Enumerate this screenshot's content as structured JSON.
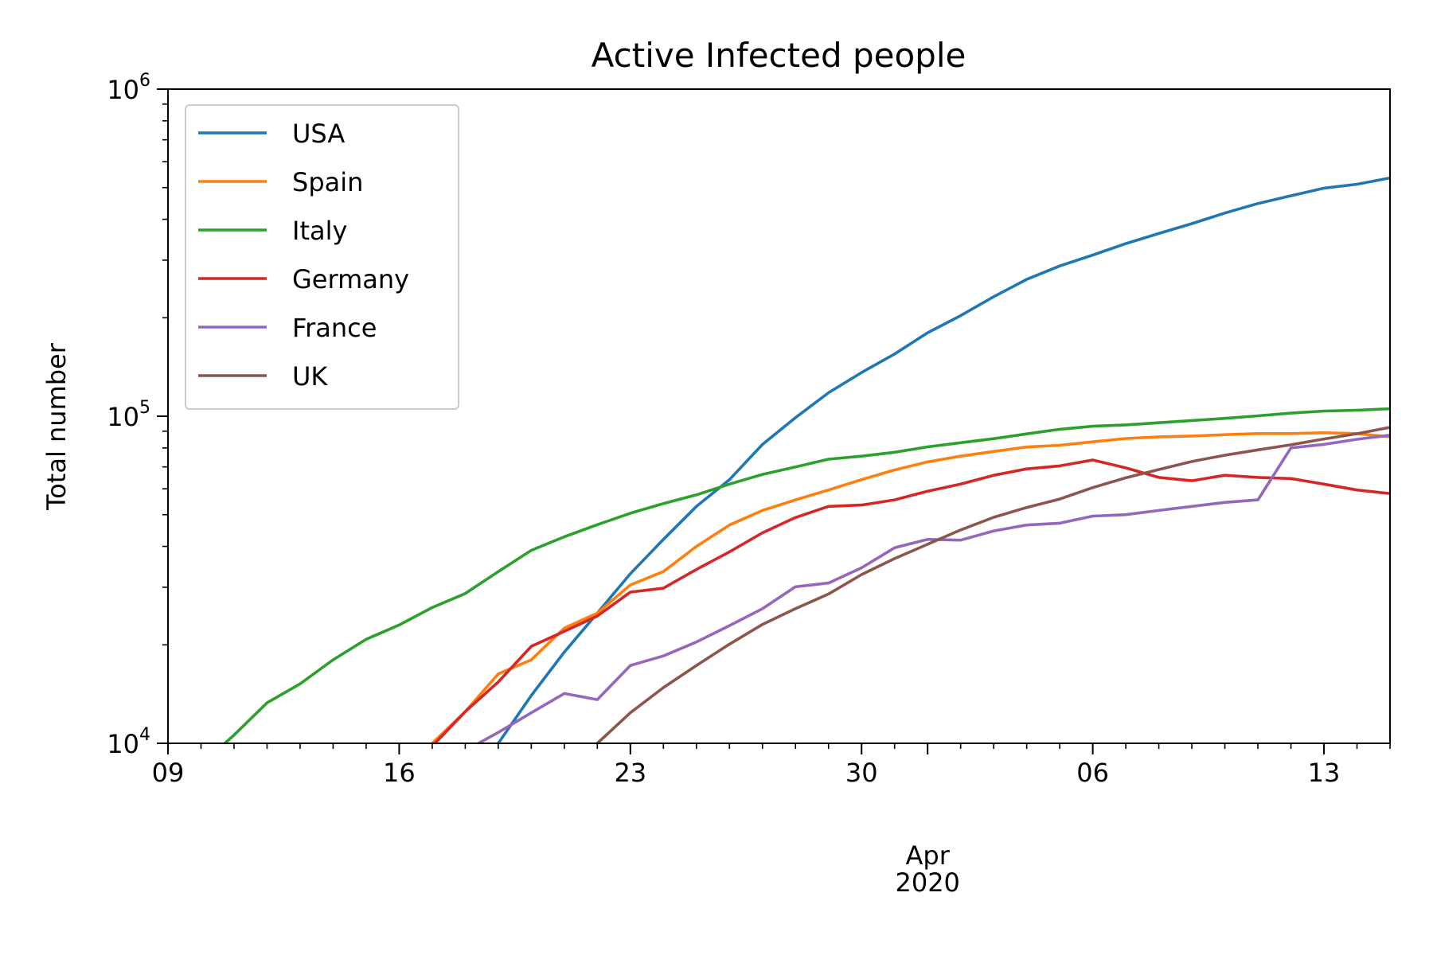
{
  "chart_data": {
    "type": "line",
    "title": "Active Infected people",
    "xlabel": "",
    "ylabel": "Total number",
    "yscale": "log",
    "ylim": [
      10000,
      1000000
    ],
    "xlim": [
      "2020-03-09",
      "2020-04-15"
    ],
    "x_tick_labels": [
      {
        "date": "2020-03-09",
        "label": "09"
      },
      {
        "date": "2020-03-16",
        "label": "16"
      },
      {
        "date": "2020-03-23",
        "label": "23"
      },
      {
        "date": "2020-03-30",
        "label": "30"
      },
      {
        "date": "2020-04-06",
        "label": "06"
      },
      {
        "date": "2020-04-13",
        "label": "13"
      }
    ],
    "x_month_label": {
      "date": "2020-04-01",
      "month": "Apr",
      "year": "2020"
    },
    "y_tick_labels": [
      {
        "value": 10000,
        "base": "10",
        "exp": "4"
      },
      {
        "value": 100000,
        "base": "10",
        "exp": "5"
      },
      {
        "value": 1000000,
        "base": "10",
        "exp": "6"
      }
    ],
    "grid": false,
    "legend_position": "top-left",
    "start_date": "2020-03-09",
    "series": [
      {
        "name": "USA",
        "color": "#1f77b4",
        "start_offset": 9,
        "values": [
          8800,
          10000,
          14000,
          19000,
          25000,
          33000,
          42000,
          53000,
          64000,
          82000,
          99000,
          118000,
          136000,
          155000,
          180000,
          203000,
          232000,
          262000,
          288000,
          311000,
          337000,
          362000,
          388000,
          418000,
          447000,
          472000,
          498000,
          512000,
          535000,
          560000
        ]
      },
      {
        "name": "Spain",
        "color": "#ff7f0e",
        "start_offset": 7,
        "values": [
          9000,
          10000,
          12500,
          16300,
          18000,
          22500,
          25000,
          30500,
          33500,
          40000,
          46500,
          51500,
          55500,
          59500,
          64000,
          68500,
          72500,
          75500,
          78000,
          80500,
          81500,
          83500,
          85500,
          86500,
          87000,
          87800,
          88500,
          88500,
          89000,
          88500,
          86500
        ]
      },
      {
        "name": "Italy",
        "color": "#2ca02c",
        "start_offset": 1,
        "values": [
          8600,
          10600,
          13300,
          15200,
          18000,
          20800,
          23000,
          26000,
          28700,
          33500,
          38900,
          42800,
          46600,
          50500,
          54100,
          57500,
          62000,
          66400,
          70000,
          73900,
          75500,
          77600,
          80600,
          83000,
          85400,
          88300,
          91200,
          93200,
          94100,
          95500,
          97000,
          98500,
          100300,
          102200,
          103700,
          104300,
          105400
        ]
      },
      {
        "name": "Germany",
        "color": "#d62728",
        "start_offset": 7,
        "values": [
          8500,
          9800,
          12500,
          15400,
          19800,
          22000,
          24500,
          29000,
          29800,
          34000,
          38500,
          44000,
          49000,
          53000,
          53500,
          55500,
          59000,
          62000,
          66000,
          69000,
          70500,
          73500,
          69500,
          65000,
          63500,
          66000,
          65000,
          64500,
          62000,
          59500,
          58000
        ]
      },
      {
        "name": "France",
        "color": "#9467bd",
        "start_offset": 9,
        "values": [
          9500,
          10800,
          12400,
          14200,
          13600,
          17300,
          18500,
          20400,
          22900,
          25800,
          30100,
          30900,
          34400,
          39600,
          42000,
          41800,
          44600,
          46500,
          47100,
          49500,
          50000,
          51500,
          53000,
          54500,
          55500,
          80000,
          82000,
          85000,
          87500,
          87000
        ]
      },
      {
        "name": "UK",
        "color": "#8c564b",
        "start_offset": 13,
        "values": [
          10000,
          12400,
          14800,
          17300,
          20100,
          23100,
          25800,
          28600,
          32800,
          36700,
          40600,
          44900,
          49100,
          52600,
          55800,
          60500,
          64800,
          68700,
          72700,
          76000,
          78900,
          81800,
          85200,
          88400,
          92500
        ]
      }
    ]
  }
}
